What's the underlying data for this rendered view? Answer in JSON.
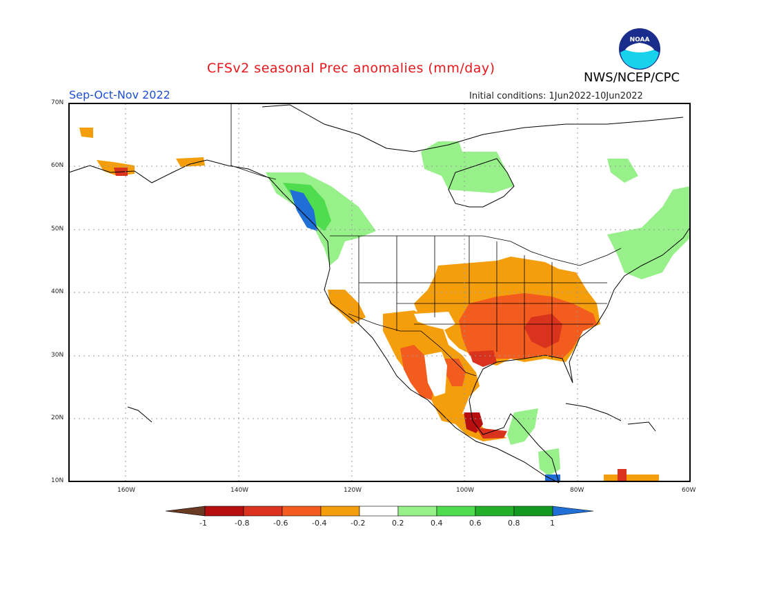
{
  "header": {
    "title": "CFSv2 seasonal Prec anomalies (mm/day)",
    "agency": "NWS/NCEP/CPC",
    "season": "Sep-Oct-Nov 2022",
    "initial_conditions": "Initial conditions: 1Jun2022-10Jun2022",
    "logo_text": "NOAA"
  },
  "axes": {
    "lat_labels": [
      "70N",
      "60N",
      "50N",
      "40N",
      "30N",
      "20N",
      "10N"
    ],
    "lon_labels": [
      "160W",
      "140W",
      "120W",
      "100W",
      "80W",
      "60W"
    ]
  },
  "colorbar": {
    "labels": [
      "-1",
      "-0.8",
      "-0.6",
      "-0.4",
      "-0.2",
      "0.2",
      "0.4",
      "0.6",
      "0.8",
      "1"
    ],
    "colors": [
      "#6b3a23",
      "#b70f0f",
      "#d9321d",
      "#f25c1f",
      "#f59e0b",
      "#ffffff",
      "#98f08a",
      "#4fdc4f",
      "#23b02b",
      "#139a1e",
      "#1f6fd6"
    ]
  },
  "anomaly_regions": [
    {
      "name": "Central and southeast US",
      "level": -0.4
    },
    {
      "name": "Lower Mississippi valley and southeast",
      "level": -0.6
    },
    {
      "name": "Gulf states core",
      "level": -0.8
    },
    {
      "name": "Southwest US and Mexico",
      "level": -0.4
    },
    {
      "name": "Northwest Mexico coast",
      "level": -0.6
    },
    {
      "name": "Southern Mexico",
      "level": -0.8
    },
    {
      "name": "British Columbia coast",
      "level": 1.0
    },
    {
      "name": "Pacific Northwest",
      "level": 0.4
    },
    {
      "name": "Hudson Bay",
      "level": 0.4
    },
    {
      "name": "Northeast US and eastern Canada",
      "level": 0.4
    },
    {
      "name": "Alaska west coast",
      "level": -0.4
    }
  ]
}
